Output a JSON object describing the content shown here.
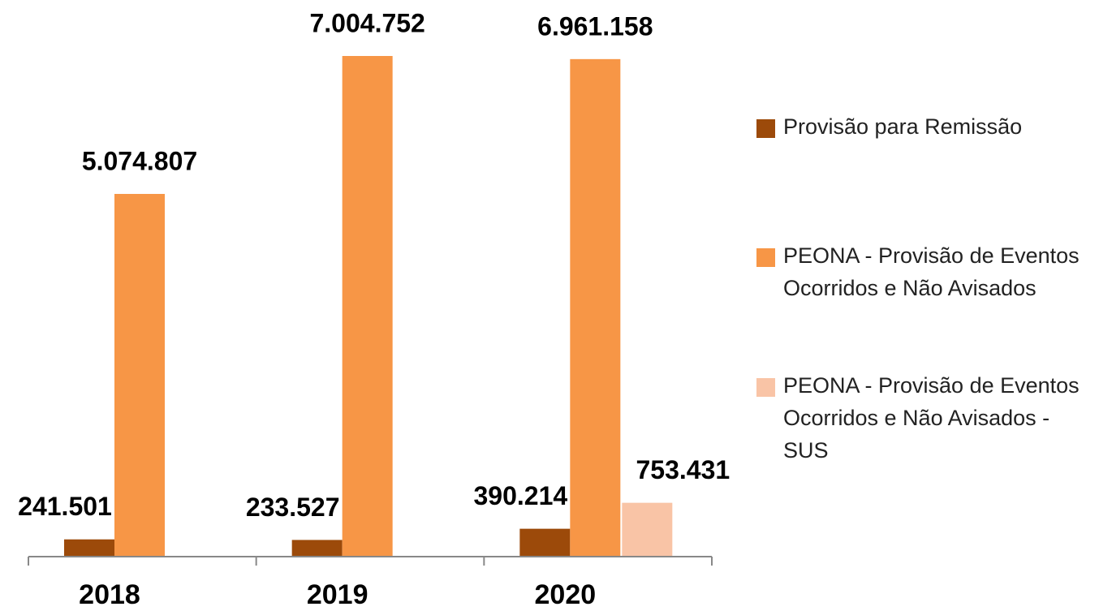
{
  "chart_data": {
    "type": "bar",
    "categories": [
      "2018",
      "2019",
      "2020"
    ],
    "series": [
      {
        "name": "Provisão para Remissão",
        "color": "#9c4a0a",
        "values": [
          241501,
          233527,
          390214
        ],
        "value_labels": [
          "241.501",
          "233.527",
          "390.214"
        ]
      },
      {
        "name": "PEONA - Provisão de Eventos Ocorridos e Não Avisados",
        "color": "#f79646",
        "values": [
          5074807,
          7004752,
          6961158
        ],
        "value_labels": [
          "5.074.807",
          "7.004.752",
          "6.961.158"
        ]
      },
      {
        "name": "PEONA - Provisão de Eventos Ocorridos e Não Avisados - SUS",
        "color": "#f9c4a6",
        "values": [
          null,
          null,
          753431
        ],
        "value_labels": [
          null,
          null,
          "753.431"
        ]
      }
    ]
  }
}
